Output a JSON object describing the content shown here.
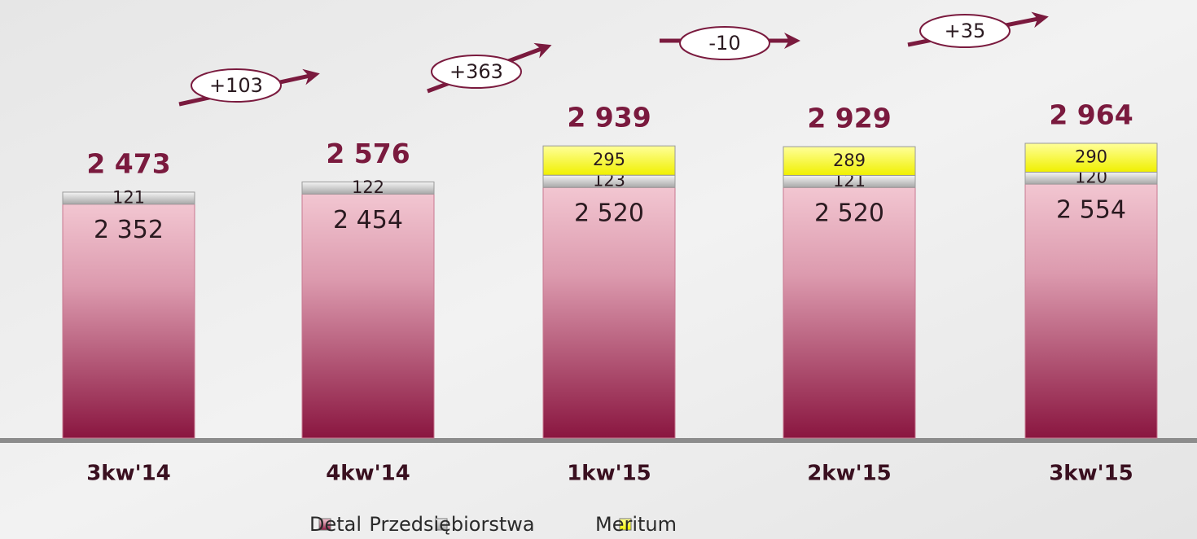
{
  "chart_data": {
    "type": "stacked_bar",
    "categories": [
      "3kw'14",
      "4kw'14",
      "1kw'15",
      "2kw'15",
      "3kw'15"
    ],
    "series": [
      {
        "name": "Detal",
        "color": "#9e2a50",
        "values": [
          2352,
          2454,
          2520,
          2520,
          2554
        ],
        "value_labels": [
          "2 352",
          "2 454",
          "2 520",
          "2 520",
          "2 554"
        ]
      },
      {
        "name": "Przedsiębiorstwa",
        "color": "#c8c8c8",
        "values": [
          121,
          122,
          123,
          121,
          120
        ]
      },
      {
        "name": "Meritum",
        "color": "#ffff33",
        "values": [
          null,
          null,
          295,
          289,
          290
        ]
      }
    ],
    "totals": [
      2473,
      2576,
      2939,
      2929,
      2964
    ],
    "total_labels": [
      "2 473",
      "2 576",
      "2 939",
      "2 929",
      "2 964"
    ],
    "changes": [
      103,
      363,
      -10,
      35
    ],
    "change_labels": [
      "+103",
      "+363",
      "-10",
      "+35"
    ],
    "legend": "bottom"
  }
}
